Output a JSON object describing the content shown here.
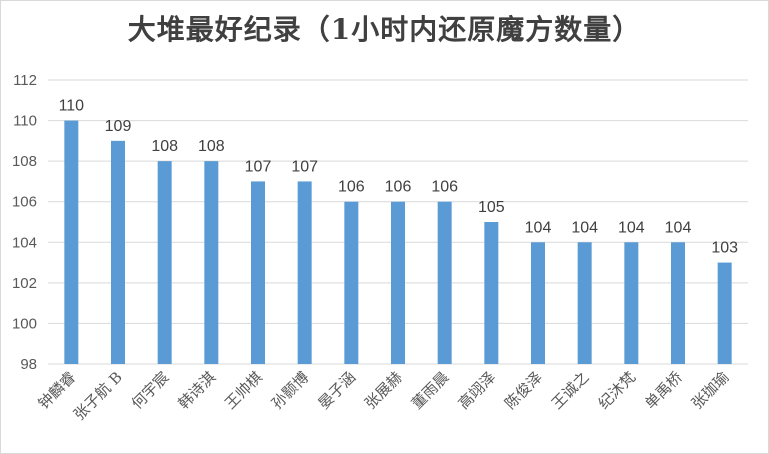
{
  "chart_data": {
    "type": "bar",
    "title": "大堆最好纪录（1小时内还原魔方数量）",
    "xlabel": "",
    "ylabel": "",
    "categories": [
      "钟麟睿",
      "张子航 B",
      "何宇宸",
      "韩诗淇",
      "王帅棋",
      "孙颢博",
      "晏子涵",
      "张展赫",
      "董雨晨",
      "高翊泽",
      "陈俊泽",
      "王诚之",
      "纪沐梵",
      "单禹桥",
      "张珈瑜"
    ],
    "values": [
      110,
      109,
      108,
      108,
      107,
      107,
      106,
      106,
      106,
      105,
      104,
      104,
      104,
      104,
      103
    ],
    "ylim": [
      98,
      112
    ],
    "yticks": [
      98,
      100,
      102,
      104,
      106,
      108,
      110,
      112
    ],
    "grid": true,
    "data_labels": true,
    "bar_color": "#5b9bd5"
  }
}
